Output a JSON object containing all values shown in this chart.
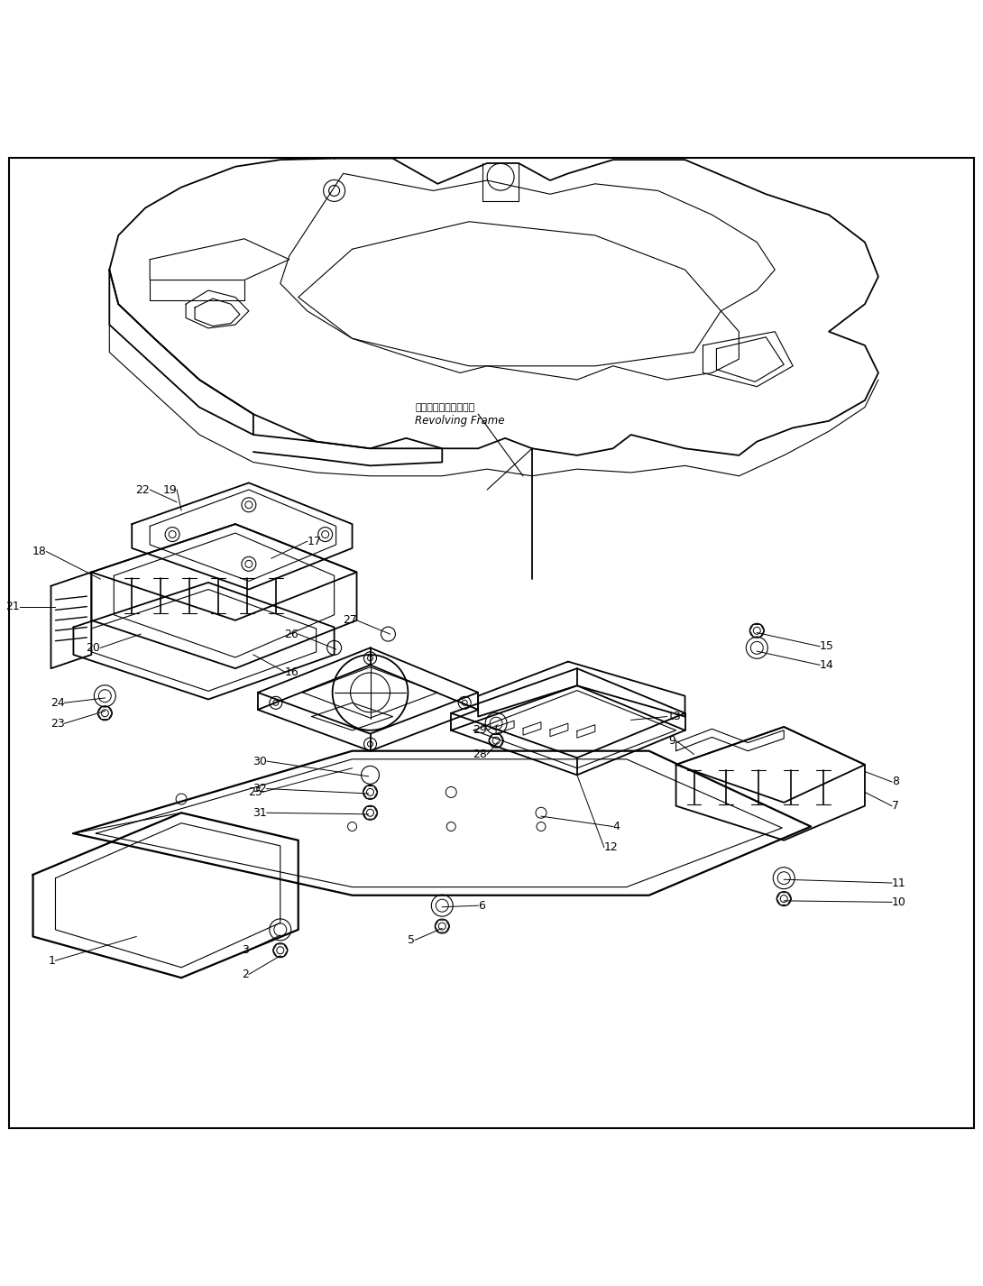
{
  "background_color": "#ffffff",
  "line_color": "#000000",
  "fig_width": 10.9,
  "fig_height": 14.26,
  "labels": {
    "revolving_frame_ja": "レボルビングフレーム",
    "revolving_frame_en": "Revolving Frame"
  }
}
